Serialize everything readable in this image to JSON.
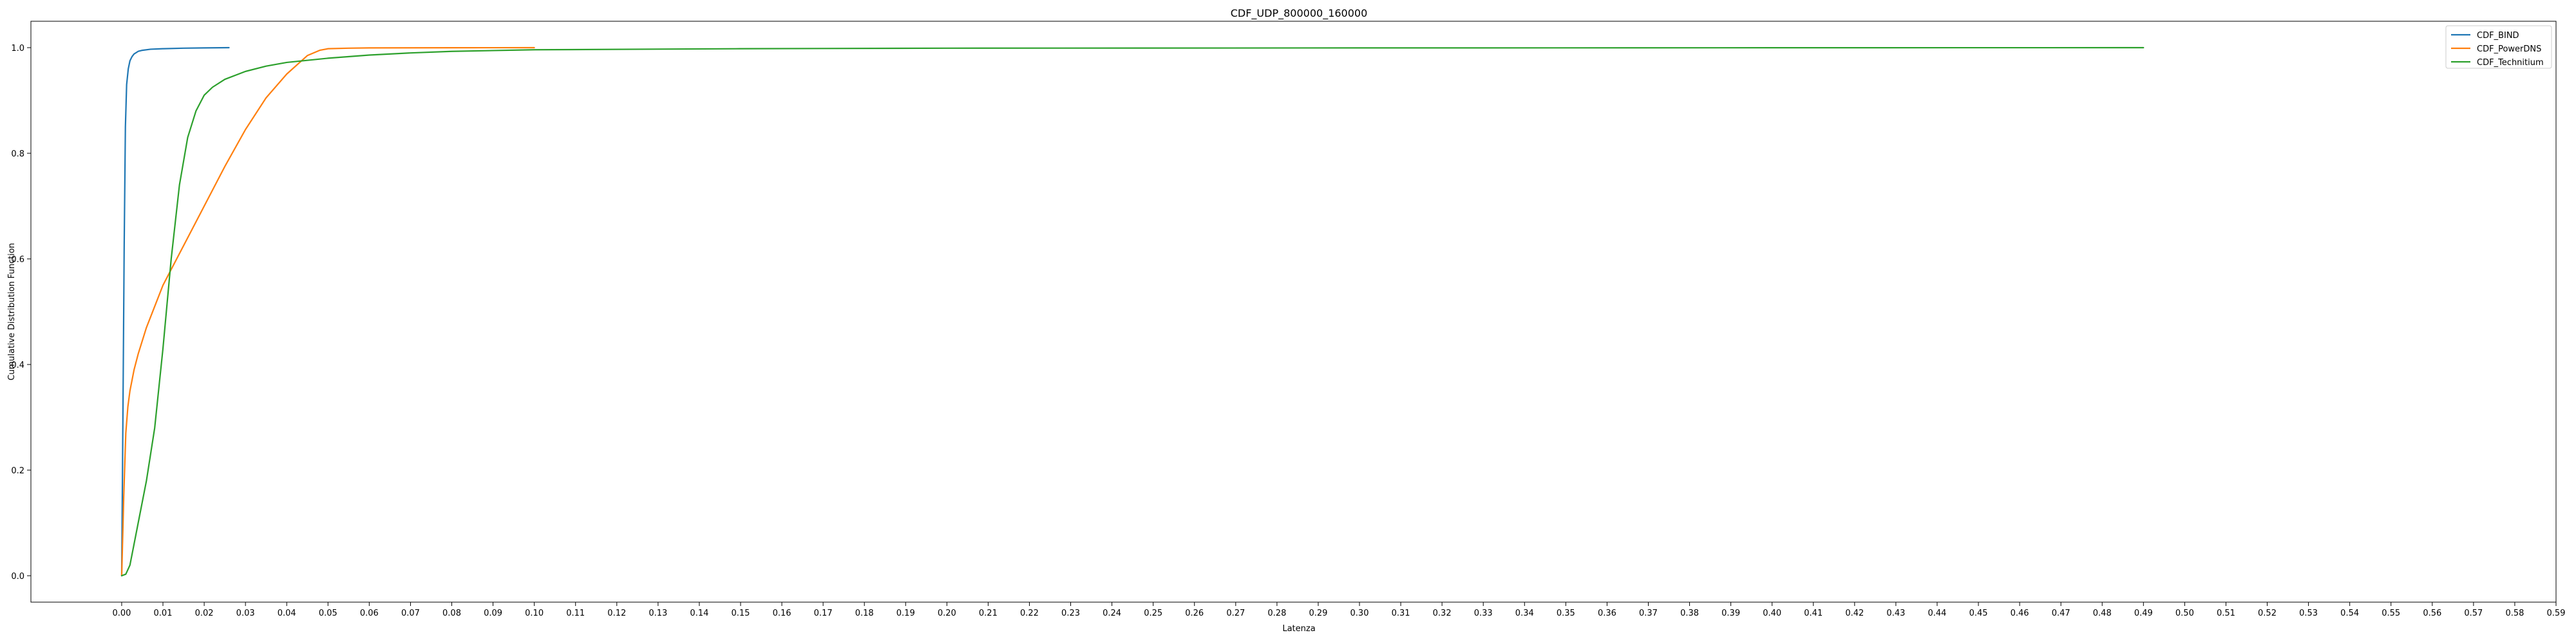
{
  "chart_data": {
    "type": "line",
    "title": "CDF_UDP_800000_160000",
    "xlabel": "Latenza",
    "ylabel": "Cumulative Distribution Function",
    "xlim": [
      -0.022,
      0.59
    ],
    "ylim": [
      -0.05,
      1.05
    ],
    "xticks": [
      "0.00",
      "0.01",
      "0.02",
      "0.03",
      "0.04",
      "0.05",
      "0.06",
      "0.07",
      "0.08",
      "0.09",
      "0.10",
      "0.11",
      "0.12",
      "0.13",
      "0.14",
      "0.15",
      "0.16",
      "0.17",
      "0.18",
      "0.19",
      "0.20",
      "0.21",
      "0.22",
      "0.23",
      "0.24",
      "0.25",
      "0.26",
      "0.27",
      "0.28",
      "0.29",
      "0.30",
      "0.31",
      "0.32",
      "0.33",
      "0.34",
      "0.35",
      "0.36",
      "0.37",
      "0.38",
      "0.39",
      "0.40",
      "0.41",
      "0.42",
      "0.43",
      "0.44",
      "0.45",
      "0.46",
      "0.47",
      "0.48",
      "0.49",
      "0.50",
      "0.51",
      "0.52",
      "0.53",
      "0.54",
      "0.55",
      "0.56",
      "0.57",
      "0.58",
      "0.59"
    ],
    "yticks": [
      "0.0",
      "0.2",
      "0.4",
      "0.6",
      "0.8",
      "1.0"
    ],
    "grid": false,
    "legend_position": "top-right",
    "series": [
      {
        "name": "CDF_BIND",
        "color": "#1f77b4",
        "x": [
          0,
          0.0003,
          0.0006,
          0.0009,
          0.0012,
          0.0016,
          0.002,
          0.0025,
          0.003,
          0.004,
          0.005,
          0.007,
          0.01,
          0.015,
          0.02,
          0.026
        ],
        "y": [
          0,
          0.3,
          0.62,
          0.85,
          0.93,
          0.96,
          0.975,
          0.983,
          0.988,
          0.993,
          0.995,
          0.997,
          0.998,
          0.999,
          0.9995,
          1.0
        ]
      },
      {
        "name": "CDF_PowerDNS",
        "color": "#ff7f0e",
        "x": [
          0,
          0.0005,
          0.001,
          0.0015,
          0.002,
          0.003,
          0.004,
          0.006,
          0.008,
          0.01,
          0.012,
          0.015,
          0.018,
          0.02,
          0.025,
          0.03,
          0.035,
          0.04,
          0.045,
          0.048,
          0.05,
          0.055,
          0.06,
          0.07,
          0.08,
          0.09,
          0.1
        ],
        "y": [
          0,
          0.15,
          0.27,
          0.32,
          0.35,
          0.39,
          0.42,
          0.47,
          0.51,
          0.55,
          0.58,
          0.625,
          0.67,
          0.7,
          0.775,
          0.845,
          0.905,
          0.95,
          0.985,
          0.995,
          0.998,
          0.999,
          0.9995,
          0.9997,
          0.9998,
          0.9999,
          1.0
        ]
      },
      {
        "name": "CDF_Technitium",
        "color": "#2ca02c",
        "x": [
          0,
          0.001,
          0.002,
          0.003,
          0.004,
          0.005,
          0.006,
          0.008,
          0.01,
          0.012,
          0.014,
          0.016,
          0.018,
          0.02,
          0.022,
          0.025,
          0.03,
          0.035,
          0.04,
          0.05,
          0.06,
          0.07,
          0.08,
          0.1,
          0.15,
          0.2,
          0.3,
          0.4,
          0.49
        ],
        "y": [
          0,
          0.003,
          0.02,
          0.06,
          0.1,
          0.14,
          0.18,
          0.28,
          0.43,
          0.6,
          0.74,
          0.83,
          0.88,
          0.91,
          0.925,
          0.94,
          0.955,
          0.965,
          0.972,
          0.98,
          0.986,
          0.99,
          0.993,
          0.996,
          0.998,
          0.999,
          0.9995,
          0.9998,
          1.0
        ]
      }
    ]
  }
}
